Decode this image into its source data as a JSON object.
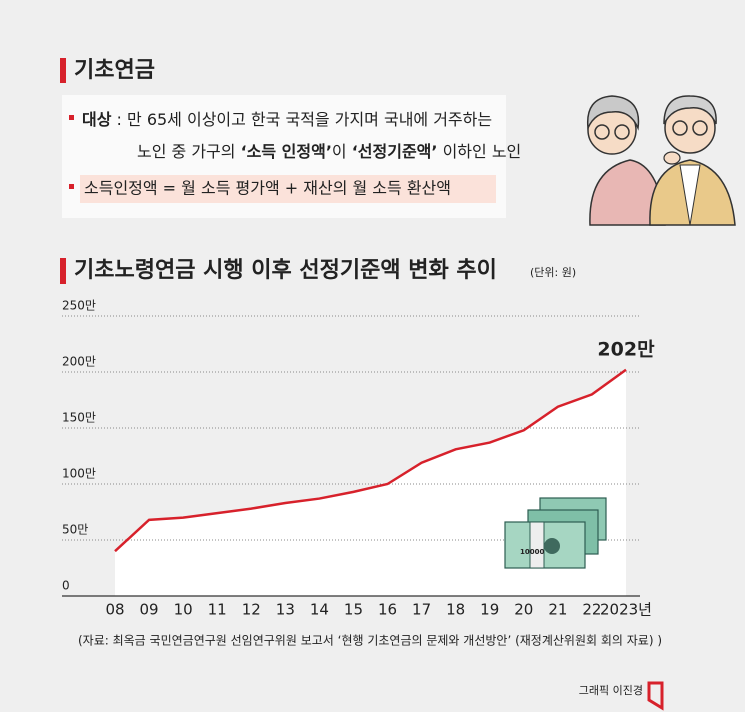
{
  "header": {
    "title": "기초연금"
  },
  "info": {
    "line1_label": "대상",
    "line1_text": " : 만 65세 이상이고 한국 국적을 가지며 국내에 거주하는",
    "line2_a": "노인 중 가구의 ",
    "line2_b": "‘소득 인정액’",
    "line2_c": "이 ",
    "line2_d": "‘선정기준액’",
    "line2_e": " 이하인 노인",
    "formula": "소득인정액 = 월 소득 평가액 + 재산의 월 소득 환산액"
  },
  "illustration": {
    "banknote": "10000"
  },
  "chart_data": {
    "type": "line",
    "title": "기초노령연금 시행 이후 선정기준액 변화 추이",
    "unit_note": "(단위: 원)",
    "categories": [
      "08",
      "09",
      "10",
      "11",
      "12",
      "13",
      "14",
      "15",
      "16",
      "17",
      "18",
      "19",
      "20",
      "21",
      "22",
      "2023년"
    ],
    "values": [
      40,
      68,
      70,
      74,
      78,
      83,
      87,
      93,
      100,
      119,
      131,
      137,
      148,
      169,
      180,
      202
    ],
    "value_labels": [
      null,
      null,
      null,
      null,
      null,
      null,
      null,
      null,
      null,
      null,
      null,
      null,
      null,
      null,
      null,
      "202만"
    ],
    "color": "#d7212b",
    "ylim": [
      0,
      250
    ],
    "yticks": [
      0,
      {
        "value": 50,
        "label": "50만"
      },
      {
        "value": 100,
        "label": "100만"
      },
      {
        "value": 150,
        "label": "150만"
      },
      {
        "value": 200,
        "label": "200만"
      },
      {
        "value": 250,
        "label": "250만"
      }
    ],
    "grid": true,
    "source": "(자료: 최옥금 국민연금연구원 선임연구위원 보고서 ‘현행 기초연금의 문제와 개선방안’ (재정계산위원회 회의 자료) )"
  },
  "credit": "그래픽 이진경"
}
